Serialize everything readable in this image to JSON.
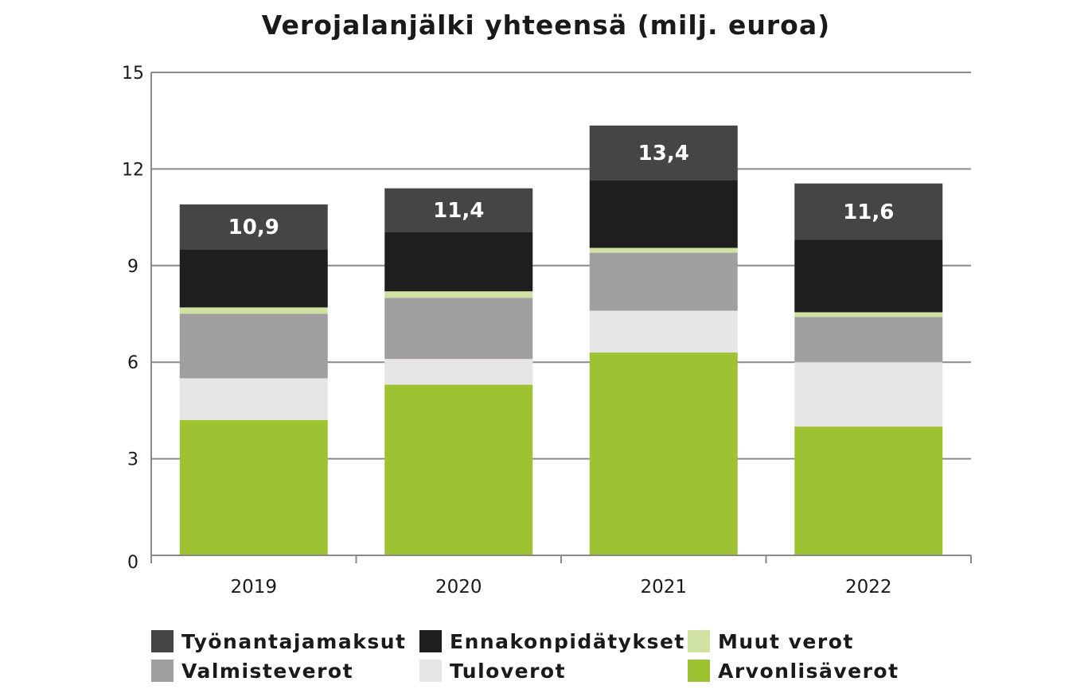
{
  "chart_data": {
    "type": "bar",
    "stacked": true,
    "title": "Verojalanjälki yhteensä (milj. euroa)",
    "xlabel": "",
    "ylabel": "",
    "categories": [
      "2019",
      "2020",
      "2021",
      "2022"
    ],
    "ylim": [
      0,
      15
    ],
    "yticks": [
      "0",
      "3",
      "6",
      "9",
      "12",
      "15"
    ],
    "grid": true,
    "legend_position": "bottom",
    "series": [
      {
        "name": "Arvonlisäverot",
        "color": "#9dc332",
        "values": [
          4.2,
          5.3,
          6.3,
          4.0
        ]
      },
      {
        "name": "Tuloverot",
        "color": "#e6e6e6",
        "values": [
          1.3,
          0.8,
          1.3,
          2.0
        ]
      },
      {
        "name": "Valmisteverot",
        "color": "#a09e9e",
        "values": [
          2.0,
          1.9,
          1.8,
          1.4
        ]
      },
      {
        "name": "Muut verot",
        "color": "#d0e2a2",
        "values": [
          0.2,
          0.2,
          0.15,
          0.15
        ]
      },
      {
        "name": "Ennakonpidätykset",
        "color": "#1e1e1e",
        "values": [
          1.8,
          1.85,
          2.1,
          2.25
        ]
      },
      {
        "name": "Työnantajamaksut",
        "color": "#454545",
        "values": [
          1.4,
          1.35,
          1.7,
          1.75
        ]
      }
    ],
    "totals": [
      "10,9",
      "11,4",
      "13,4",
      "11,6"
    ]
  },
  "legend": {
    "items": [
      {
        "name": "Työnantajamaksut",
        "color": "#454545"
      },
      {
        "name": "Ennakonpidätykset",
        "color": "#1e1e1e"
      },
      {
        "name": "Muut verot",
        "color": "#d0e2a2"
      },
      {
        "name": "Valmisteverot",
        "color": "#a09e9e"
      },
      {
        "name": "Tuloverot",
        "color": "#e6e6e6"
      },
      {
        "name": "Arvonlisäverot",
        "color": "#9dc332"
      }
    ]
  }
}
